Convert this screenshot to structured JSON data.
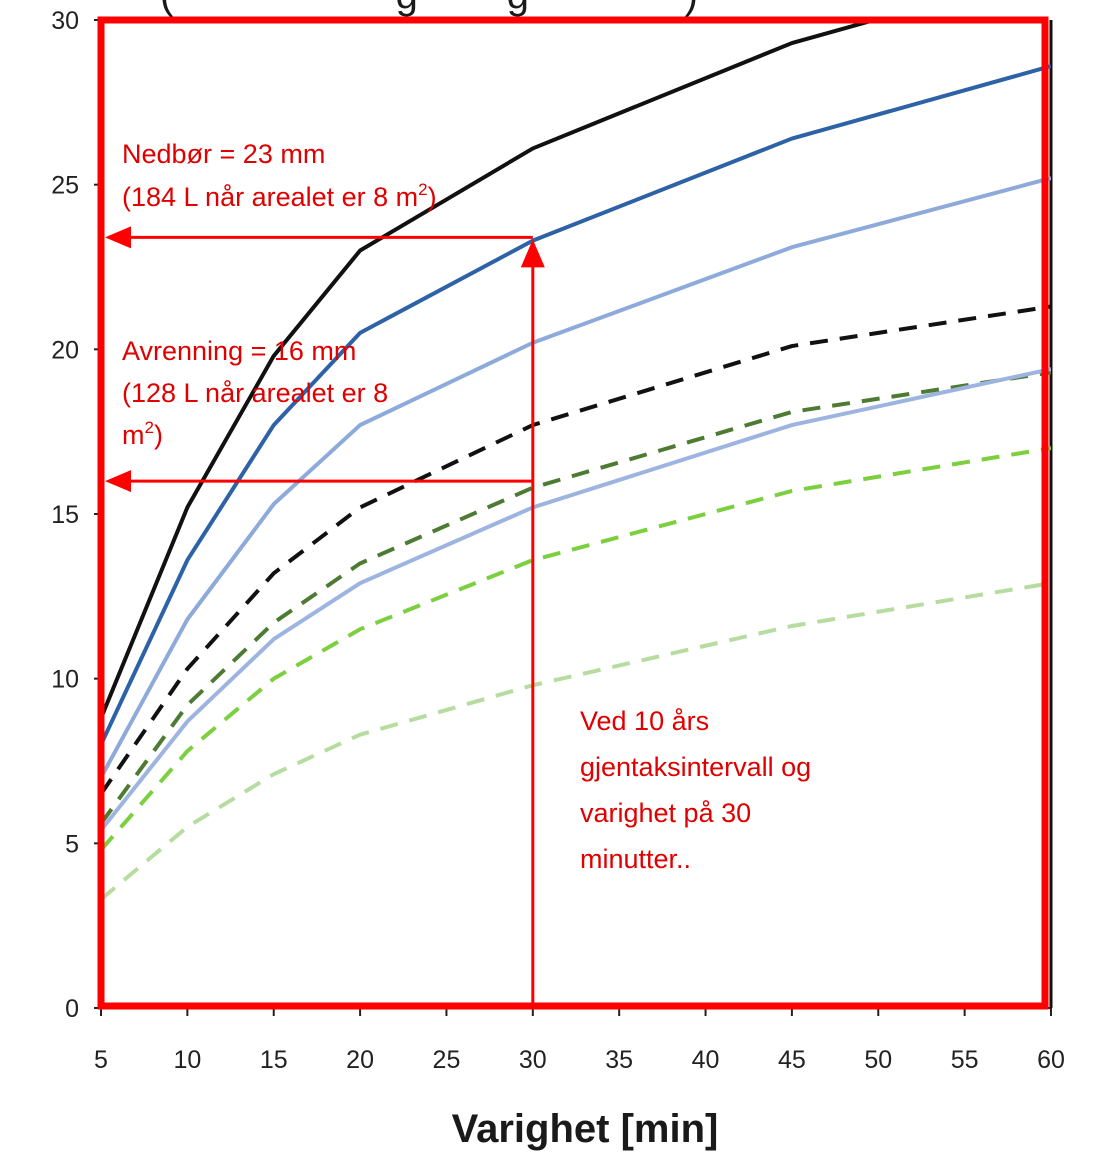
{
  "chart_data": {
    "type": "line",
    "title_fragment": "(                    g        g              )",
    "xlabel": "Varighet [min]",
    "ylabel": "",
    "xlim": [
      5,
      60
    ],
    "ylim": [
      0,
      30
    ],
    "x_ticks": [
      "5",
      "10",
      "15",
      "20",
      "25",
      "30",
      "35",
      "40",
      "45",
      "50",
      "55",
      "60"
    ],
    "y_ticks": [
      "0",
      "5",
      "10",
      "15",
      "20",
      "25",
      "30"
    ],
    "grid": false,
    "legend": "none",
    "x": [
      5,
      10,
      15,
      20,
      30,
      45,
      60
    ],
    "series": [
      {
        "color": "#111111",
        "style": "solid",
        "values": [
          8.8,
          15.2,
          19.8,
          23.0,
          26.1,
          29.3,
          31.5
        ]
      },
      {
        "color": "#2e62a6",
        "style": "solid",
        "values": [
          8.0,
          13.6,
          17.7,
          20.5,
          23.3,
          26.4,
          28.6
        ]
      },
      {
        "color": "#8eaadb",
        "style": "solid",
        "values": [
          7.0,
          11.8,
          15.3,
          17.7,
          20.2,
          23.1,
          25.2
        ]
      },
      {
        "color": "#111111",
        "style": "dashed",
        "values": [
          6.5,
          10.3,
          13.2,
          15.2,
          17.7,
          20.1,
          21.3
        ]
      },
      {
        "color": "#4e7b33",
        "style": "dashed",
        "values": [
          5.6,
          9.2,
          11.7,
          13.5,
          15.8,
          18.1,
          19.3
        ]
      },
      {
        "color": "#9db3e0",
        "style": "solid",
        "values": [
          5.4,
          8.7,
          11.2,
          12.9,
          15.2,
          17.7,
          19.4
        ]
      },
      {
        "color": "#7ccf3e",
        "style": "dashed",
        "values": [
          4.8,
          7.8,
          10.0,
          11.5,
          13.6,
          15.7,
          17.0
        ]
      },
      {
        "color": "#b7dca0",
        "style": "dashed",
        "values": [
          3.3,
          5.5,
          7.1,
          8.3,
          9.8,
          11.6,
          12.9
        ]
      }
    ],
    "annotations": {
      "nedbor_line1": "Nedbør = 23 mm",
      "nedbor_line2": "(184 L når arealet er 8 m",
      "nedbor_sup": "2",
      "nedbor_close": ")",
      "avrenning_line1": "Avrenning = 16 mm",
      "avrenning_line2": "(128 L når arealet er 8",
      "avrenning_line3": "m",
      "avrenning_sup": "2",
      "avrenning_close": ")",
      "ved_line1": "Ved 10 års",
      "ved_line2": "gjentaksintervall og",
      "ved_line3": "varighet på 30",
      "ved_line4": "minutter..",
      "nedbor_value": 23.4,
      "avrenning_value": 16.0,
      "duration_value": 30,
      "highlight_color": "#ff0000"
    }
  }
}
